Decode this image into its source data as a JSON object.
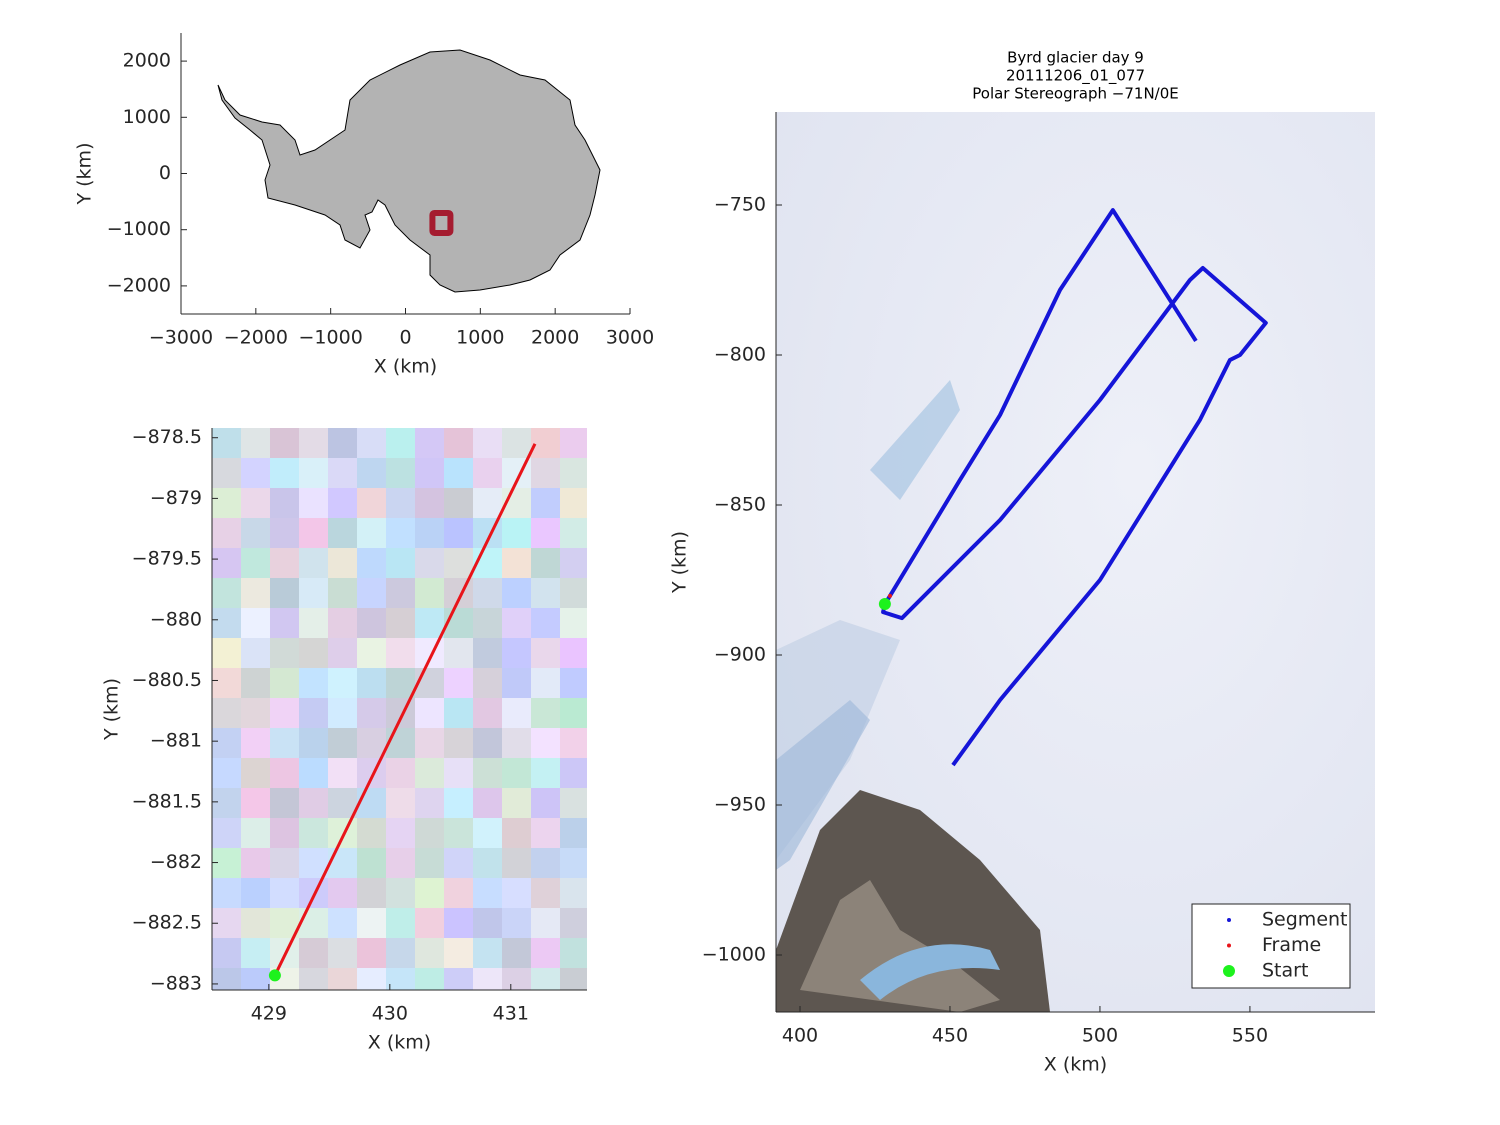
{
  "chart_data": [
    {
      "type": "map",
      "xlabel": "X (km)",
      "ylabel": "Y (km)",
      "xlim": [
        -3000,
        3000
      ],
      "ylim": [
        -2500,
        2500
      ],
      "xticks": [
        {
          "value": -3000,
          "label": "−3000"
        },
        {
          "value": -2000,
          "label": "−2000"
        },
        {
          "value": -1000,
          "label": "−1000"
        },
        0,
        1000,
        2000,
        3000
      ],
      "yticks": [
        {
          "value": -2000,
          "label": "−2000"
        },
        {
          "value": -1000,
          "label": "−1000"
        },
        0,
        1000,
        2000
      ],
      "series": [
        {
          "color": "#a51c30",
          "marker": "square",
          "x": [
            480
          ],
          "y": [
            -880
          ]
        }
      ]
    },
    {
      "type": "line",
      "xlabel": "X (km)",
      "ylabel": "Y (km)",
      "xlim": [
        428.53,
        431.63
      ],
      "ylim": [
        -883.05,
        -878.42
      ],
      "xticks": [
        429,
        430,
        431
      ],
      "yticks": [
        {
          "value": -883,
          "label": "−883"
        },
        {
          "value": -882.5,
          "label": "−882.5"
        },
        {
          "value": -882,
          "label": "−882"
        },
        {
          "value": -881.5,
          "label": "−881.5"
        },
        {
          "value": -881,
          "label": "−881"
        },
        {
          "value": -880.5,
          "label": "−880.5"
        },
        {
          "value": -880,
          "label": "−880"
        },
        {
          "value": -879.5,
          "label": "−879.5"
        },
        {
          "value": -879,
          "label": "−879"
        },
        {
          "value": -878.5,
          "label": "−878.5"
        }
      ],
      "series": [
        {
          "color": "#e8141a",
          "marker": "line",
          "x": [
            429.05,
            431.2
          ],
          "y": [
            -882.93,
            -878.55
          ]
        },
        {
          "color": "#1df21d",
          "marker": "circle",
          "x": [
            429.05
          ],
          "y": [
            -882.93
          ]
        }
      ]
    },
    {
      "type": "line",
      "title": [
        "Byrd glacier day 9",
        "20111206_01_077",
        "Polar Stereograph −71N/0E"
      ],
      "xlabel": "X (km)",
      "ylabel": "Y (km)",
      "xlim": [
        392,
        591.7
      ],
      "ylim": [
        -1019,
        -719
      ],
      "xticks": [
        400,
        450,
        500,
        550
      ],
      "yticks": [
        {
          "value": -1000,
          "label": "−1000"
        },
        {
          "value": -950,
          "label": "−950"
        },
        {
          "value": -900,
          "label": "−900"
        },
        {
          "value": -850,
          "label": "−850"
        },
        {
          "value": -800,
          "label": "−800"
        },
        {
          "value": -750,
          "label": "−750"
        }
      ],
      "legend": "lower right",
      "series": [
        {
          "name": "Segment",
          "color": "#1515d8",
          "marker": "line",
          "x": [
            532,
            504.3,
            486.7,
            466.7,
            453.3,
            430,
            428.3,
            427.7,
            434,
            466.7,
            500,
            530,
            534.3,
            555.3,
            546.7,
            543.3,
            533.3,
            500,
            466.7,
            451
          ],
          "y": [
            -795.3,
            -751.7,
            -778.3,
            -820,
            -841.7,
            -880.3,
            -883,
            -885.7,
            -887.7,
            -855,
            -815,
            -775,
            -771,
            -789.3,
            -800,
            -801.7,
            -821.7,
            -875,
            -915,
            -936.7
          ]
        },
        {
          "name": "Frame",
          "color": "#e8141a",
          "marker": "dot",
          "x": [
            430
          ],
          "y": [
            -880.3
          ]
        },
        {
          "name": "Start",
          "color": "#1df21d",
          "marker": "circle",
          "x": [
            428.3
          ],
          "y": [
            -883
          ]
        }
      ]
    }
  ]
}
